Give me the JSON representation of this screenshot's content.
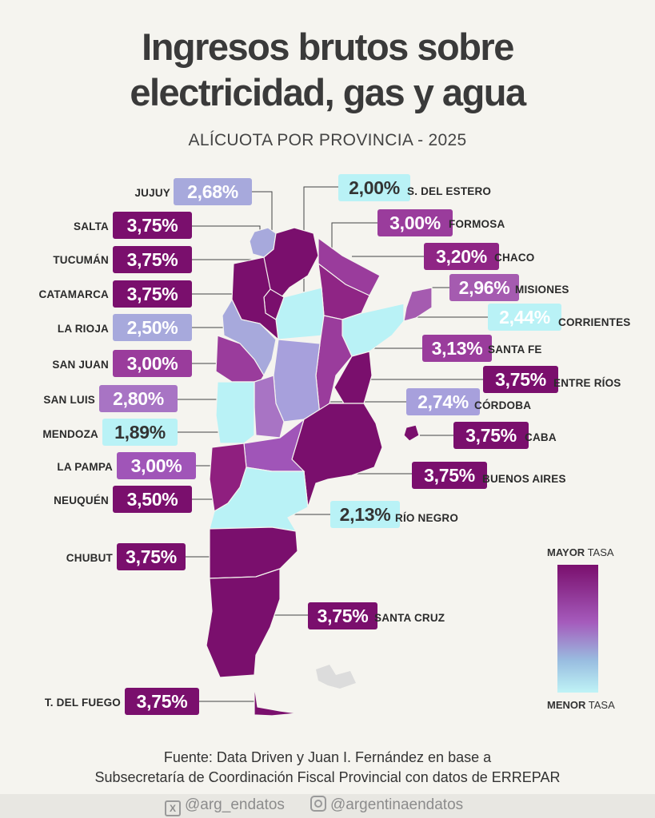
{
  "title": {
    "line1": "Ingresos brutos sobre",
    "line2": "electricidad, gas y agua"
  },
  "subtitle": "ALÍCUOTA POR PROVINCIA - 2025",
  "colors": {
    "max": "#7a0f6d",
    "high": "#8f2585",
    "mid_high": "#9a3c9c",
    "mid": "#a874c4",
    "mid_low": "#a7a9dc",
    "low": "#b9f2f6",
    "text_dark": "#333333"
  },
  "provinces": [
    {
      "id": "jujuy",
      "name": "JUJUY",
      "rate": "2,68%"
    },
    {
      "id": "salta",
      "name": "SALTA",
      "rate": "3,75%"
    },
    {
      "id": "tucuman",
      "name": "TUCUMÁN",
      "rate": "3,75%"
    },
    {
      "id": "catamarca",
      "name": "CATAMARCA",
      "rate": "3,75%"
    },
    {
      "id": "la-rioja",
      "name": "LA RIOJA",
      "rate": "2,50%"
    },
    {
      "id": "san-juan",
      "name": "SAN JUAN",
      "rate": "3,00%"
    },
    {
      "id": "san-luis",
      "name": "SAN LUIS",
      "rate": "2,80%"
    },
    {
      "id": "mendoza",
      "name": "MENDOZA",
      "rate": "1,89%"
    },
    {
      "id": "la-pampa",
      "name": "LA PAMPA",
      "rate": "3,00%"
    },
    {
      "id": "neuquen",
      "name": "NEUQUÉN",
      "rate": "3,50%"
    },
    {
      "id": "chubut",
      "name": "CHUBUT",
      "rate": "3,75%"
    },
    {
      "id": "tierra-del-fuego",
      "name": "T. DEL FUEGO",
      "rate": "3,75%"
    },
    {
      "id": "santiago-del-estero",
      "name": "S. DEL ESTERO",
      "rate": "2,00%"
    },
    {
      "id": "formosa",
      "name": "FORMOSA",
      "rate": "3,00%"
    },
    {
      "id": "chaco",
      "name": "CHACO",
      "rate": "3,20%"
    },
    {
      "id": "misiones",
      "name": "MISIONES",
      "rate": "2,96%"
    },
    {
      "id": "corrientes",
      "name": "CORRIENTES",
      "rate": "2,44%"
    },
    {
      "id": "santa-fe",
      "name": "SANTA FE",
      "rate": "3,13%"
    },
    {
      "id": "entre-rios",
      "name": "ENTRE RÍOS",
      "rate": "3,75%"
    },
    {
      "id": "cordoba",
      "name": "CÓRDOBA",
      "rate": "2,74%"
    },
    {
      "id": "caba",
      "name": "CABA",
      "rate": "3,75%"
    },
    {
      "id": "buenos-aires",
      "name": "BUENOS AIRES",
      "rate": "3,75%"
    },
    {
      "id": "rio-negro",
      "name": "RÍO NEGRO",
      "rate": "2,13%"
    },
    {
      "id": "santa-cruz",
      "name": "SANTA CRUZ",
      "rate": "3,75%"
    }
  ],
  "legend": {
    "top_bold": "MAYOR",
    "top_rest": " TASA",
    "bottom_bold": "MENOR",
    "bottom_rest": " TASA"
  },
  "source": {
    "line1": "Fuente: Data Driven y Juan I. Fernández en base a",
    "line2": "Subsecretaría de Coordinación Fiscal Provincial con datos de ERREPAR"
  },
  "social": {
    "twitter": "@arg_endatos",
    "instagram": "@argentinaendatos"
  }
}
